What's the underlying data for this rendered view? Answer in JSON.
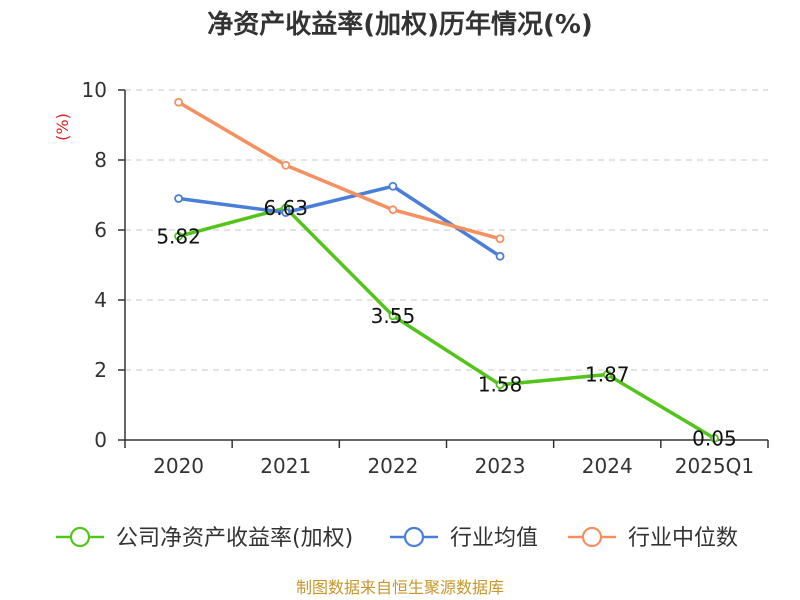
{
  "chart_data": {
    "type": "line",
    "title": "净资产收益率(加权)历年情况(%)",
    "ylabel": "(%)",
    "xlabel": "",
    "categories": [
      "2020",
      "2021",
      "2022",
      "2023",
      "2024",
      "2025Q1"
    ],
    "ylim": [
      0,
      10
    ],
    "yticks": [
      0,
      2,
      4,
      6,
      8,
      10
    ],
    "grid": true,
    "legend_position": "bottom",
    "series": [
      {
        "name": "公司净资产收益率(加权)",
        "color": "#52c41a",
        "values": [
          5.82,
          6.63,
          3.55,
          1.58,
          1.87,
          0.05
        ],
        "labels": [
          "5.82",
          "6.63",
          "3.55",
          "1.58",
          "1.87",
          "0.05"
        ]
      },
      {
        "name": "行业均值",
        "color": "#4a7fd9",
        "values": [
          6.9,
          6.5,
          7.25,
          5.25,
          null,
          null
        ]
      },
      {
        "name": "行业中位数",
        "color": "#f59060",
        "values": [
          9.65,
          7.85,
          6.58,
          5.75,
          null,
          null
        ]
      }
    ],
    "source": "制图数据来自恒生聚源数据库"
  }
}
